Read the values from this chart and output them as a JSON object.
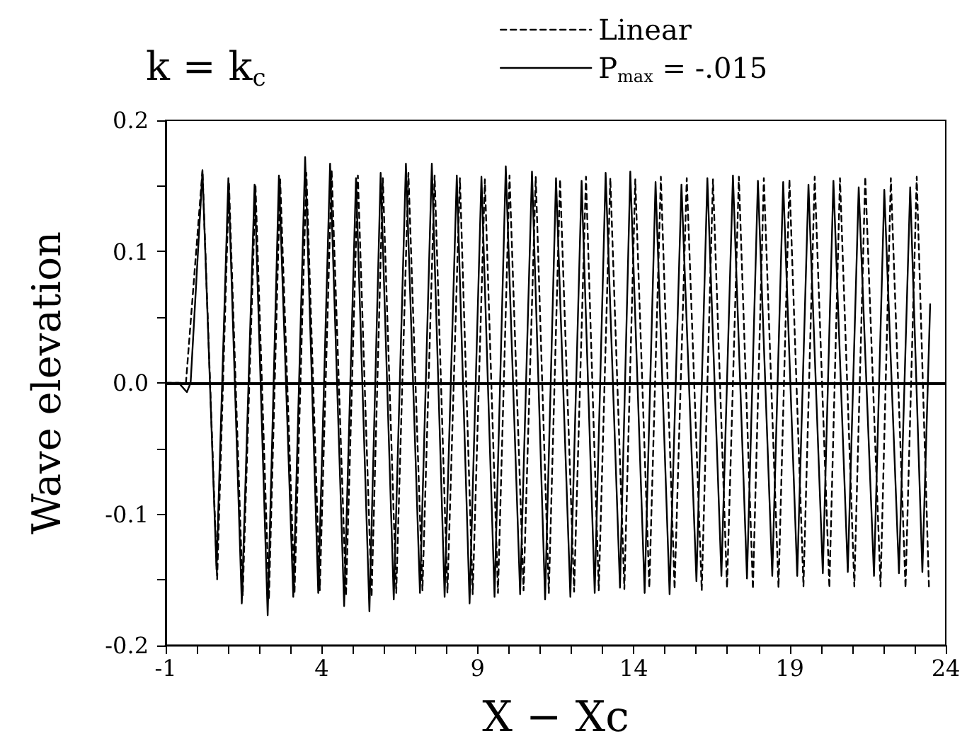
{
  "chart_data": {
    "type": "line",
    "title": "k = k$_{c}$",
    "xlabel": "X − Xc",
    "ylabel": "Wave elevation",
    "xlim": [
      -1,
      24
    ],
    "xticks": [
      -1,
      {
        "value": 0,
        "label": null
      },
      {
        "value": 1,
        "label": null
      },
      {
        "value": 2,
        "label": null
      },
      {
        "value": 3,
        "label": null
      },
      4,
      {
        "value": 5,
        "label": null
      },
      {
        "value": 6,
        "label": null
      },
      {
        "value": 7,
        "label": null
      },
      {
        "value": 8,
        "label": null
      },
      9,
      {
        "value": 10,
        "label": null
      },
      {
        "value": 11,
        "label": null
      },
      {
        "value": 12,
        "label": null
      },
      {
        "value": 13,
        "label": null
      },
      14,
      {
        "value": 15,
        "label": null
      },
      {
        "value": 16,
        "label": null
      },
      {
        "value": 17,
        "label": null
      },
      {
        "value": 18,
        "label": null
      },
      19,
      {
        "value": 20,
        "label": null
      },
      {
        "value": 21,
        "label": null
      },
      {
        "value": 22,
        "label": null
      },
      {
        "value": 23,
        "label": null
      },
      24
    ],
    "ylim": [
      -0.2,
      0.2
    ],
    "yticks": [
      -0.2,
      {
        "value": -0.15,
        "label": null
      },
      -0.1,
      {
        "value": -0.05,
        "label": null
      },
      {
        "value": 0,
        "label": "0.0"
      },
      {
        "value": 0.05,
        "label": null
      },
      0.1,
      {
        "value": 0.15,
        "label": null
      },
      0.2
    ],
    "grid": false,
    "legend": "top right",
    "marker": "none",
    "series": [
      {
        "name": "Linear",
        "color": "#000000",
        "line_style": "dashed",
        "x": [
          -1,
          -0.35,
          0.18,
          0.65,
          1.03,
          1.47,
          1.88,
          2.31,
          2.67,
          3.13,
          3.51,
          3.94,
          4.32,
          4.78,
          5.16,
          5.6,
          5.96,
          6.39,
          6.78,
          7.23,
          7.62,
          8.03,
          8.43,
          8.84,
          9.23,
          9.65,
          10.02,
          10.47,
          10.86,
          11.28,
          11.64,
          12.09,
          12.47,
          12.88,
          13.25,
          13.7,
          14.05,
          14.5,
          14.87,
          15.31,
          15.7,
          16.18,
          16.54,
          16.99,
          17.37,
          17.82,
          18.17,
          18.64,
          18.99,
          19.44,
          19.8,
          20.27,
          20.61,
          21.07,
          21.42,
          21.91,
          22.24,
          22.71,
          23.07,
          23.46
        ],
        "values": [
          0,
          0,
          0.162,
          -0.15,
          0.152,
          -0.162,
          0.15,
          -0.165,
          0.155,
          -0.16,
          0.16,
          -0.158,
          0.162,
          -0.162,
          0.158,
          -0.163,
          0.156,
          -0.16,
          0.16,
          -0.158,
          0.158,
          -0.16,
          0.156,
          -0.161,
          0.155,
          -0.16,
          0.158,
          -0.158,
          0.157,
          -0.16,
          0.155,
          -0.159,
          0.157,
          -0.158,
          0.156,
          -0.157,
          0.155,
          -0.156,
          0.157,
          -0.157,
          0.156,
          -0.158,
          0.155,
          -0.156,
          0.157,
          -0.157,
          0.156,
          -0.156,
          0.155,
          -0.155,
          0.157,
          -0.156,
          0.156,
          -0.155,
          0.157,
          -0.155,
          0.156,
          -0.156,
          0.157,
          -0.155
        ]
      },
      {
        "name": "P$_{max}$ = -.015",
        "color": "#000000",
        "line_style": "solid",
        "x": [
          -1,
          -0.58,
          -0.32,
          -0.2,
          0.18,
          0.63,
          1.01,
          1.44,
          1.85,
          2.27,
          2.63,
          3.09,
          3.47,
          3.89,
          4.27,
          4.72,
          5.1,
          5.53,
          5.89,
          6.31,
          6.7,
          7.15,
          7.53,
          7.94,
          8.33,
          8.74,
          9.12,
          9.54,
          9.9,
          10.36,
          10.74,
          11.16,
          11.51,
          11.97,
          12.33,
          12.75,
          13.1,
          13.56,
          13.89,
          14.35,
          14.7,
          15.15,
          15.53,
          16.01,
          16.36,
          16.81,
          17.18,
          17.63,
          17.98,
          18.44,
          18.79,
          19.24,
          19.6,
          20.06,
          20.4,
          20.86,
          21.21,
          21.7,
          22.03,
          22.5,
          22.86,
          23.25,
          23.5
        ],
        "values": [
          0,
          0,
          -0.007,
          0,
          0.161,
          -0.142,
          0.156,
          -0.168,
          0.151,
          -0.177,
          0.158,
          -0.163,
          0.172,
          -0.16,
          0.167,
          -0.17,
          0.156,
          -0.174,
          0.16,
          -0.165,
          0.167,
          -0.16,
          0.167,
          -0.163,
          0.158,
          -0.168,
          0.157,
          -0.163,
          0.165,
          -0.161,
          0.161,
          -0.165,
          0.156,
          -0.163,
          0.154,
          -0.16,
          0.16,
          -0.156,
          0.161,
          -0.16,
          0.153,
          -0.161,
          0.151,
          -0.151,
          0.156,
          -0.147,
          0.158,
          -0.149,
          0.154,
          -0.147,
          0.153,
          -0.147,
          0.151,
          -0.145,
          0.154,
          -0.144,
          0.149,
          -0.147,
          0.147,
          -0.145,
          0.149,
          -0.144,
          0.06
        ]
      }
    ],
    "ref_lines": [
      {
        "axis": "y",
        "value": 0,
        "color": "#000000"
      }
    ]
  }
}
